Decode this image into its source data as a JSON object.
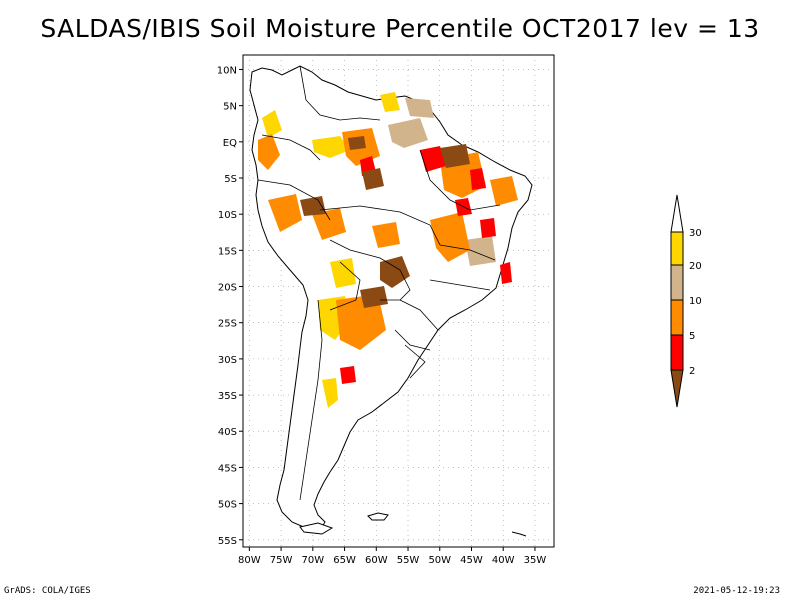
{
  "title": "SALDAS/IBIS Soil Moisture Percentile OCT2017 lev = 13",
  "map": {
    "lat_labels": [
      "10N",
      "5N",
      "EQ",
      "5S",
      "10S",
      "15S",
      "20S",
      "25S",
      "30S",
      "35S",
      "40S",
      "45S",
      "50S",
      "55S"
    ],
    "lon_labels": [
      "80W",
      "75W",
      "70W",
      "65W",
      "60W",
      "55W",
      "50W",
      "45W",
      "40W",
      "35W"
    ],
    "lon_range": [
      -81,
      -32
    ],
    "lat_range": [
      -56,
      12
    ]
  },
  "legend": {
    "labels": [
      "2",
      "5",
      "10",
      "20",
      "30"
    ],
    "colors": {
      "below_2": "#8b4a14",
      "2_5": "#ff0000",
      "5_10": "#ff8c00",
      "10_20": "#d2b48c",
      "20_30": "#ffd700",
      "above_30": "#ffffff"
    }
  },
  "footer": {
    "left": "GrADS: COLA/IGES",
    "right": "2021-05-12-19:23"
  }
}
